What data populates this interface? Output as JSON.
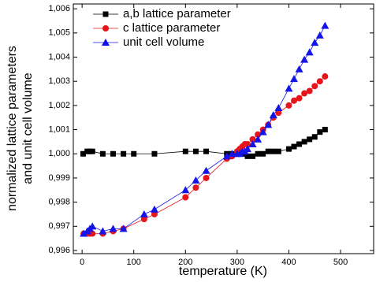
{
  "chart_data": {
    "type": "scatter-line",
    "xlabel": "temperature (K)",
    "ylabel": [
      "normalized lattice parameters",
      "and unit cell volume"
    ],
    "xlim": [
      -17,
      564
    ],
    "ylim": [
      0.99587,
      1.0062
    ],
    "xticks": [
      0,
      100,
      200,
      300,
      400,
      500
    ],
    "yticks": [
      {
        "value": 0.996,
        "label": "0,996"
      },
      {
        "value": 0.997,
        "label": "0,997"
      },
      {
        "value": 0.998,
        "label": "0,998"
      },
      {
        "value": 0.999,
        "label": "0,999"
      },
      {
        "value": 1.0,
        "label": "1,000"
      },
      {
        "value": 1.001,
        "label": "1,001"
      },
      {
        "value": 1.002,
        "label": "1,002"
      },
      {
        "value": 1.003,
        "label": "1,003"
      },
      {
        "value": 1.004,
        "label": "1,004"
      },
      {
        "value": 1.005,
        "label": "1,005"
      },
      {
        "value": 1.006,
        "label": "1,006"
      }
    ],
    "legend": "upper-left",
    "series": [
      {
        "name": "a,b lattice parameter",
        "color": "#000000",
        "marker": "square",
        "x": [
          2,
          10,
          15,
          20,
          40,
          60,
          80,
          100,
          140,
          200,
          220,
          240,
          280,
          290,
          300,
          305,
          310,
          315,
          320,
          330,
          340,
          350,
          360,
          370,
          380,
          400,
          410,
          420,
          430,
          440,
          450,
          460,
          470
        ],
        "values": [
          1.0,
          1.0001,
          1.0001,
          1.0001,
          1.0,
          1.0,
          1.0,
          1.0,
          1.0,
          1.0001,
          1.0001,
          1.0001,
          1.0,
          1.0,
          1.0,
          1.0,
          1.0,
          1.0,
          0.9999,
          0.9999,
          1.0,
          1.0,
          1.0001,
          1.0001,
          1.0001,
          1.0002,
          1.0003,
          1.0004,
          1.0005,
          1.0006,
          1.0007,
          1.0009,
          1.001
        ]
      },
      {
        "name": "c lattice parameter",
        "color": "#e8141c",
        "marker": "circle",
        "x": [
          3,
          10,
          15,
          20,
          40,
          60,
          80,
          120,
          140,
          200,
          220,
          240,
          280,
          290,
          300,
          305,
          310,
          315,
          320,
          330,
          340,
          350,
          360,
          370,
          380,
          400,
          410,
          420,
          430,
          440,
          450,
          460,
          470
        ],
        "values": [
          0.9967,
          0.9967,
          0.9967,
          0.9967,
          0.9967,
          0.9968,
          0.9969,
          0.9973,
          0.9975,
          0.9982,
          0.9986,
          0.999,
          0.9998,
          0.9999,
          1.0001,
          1.0002,
          1.0003,
          1.0004,
          1.0004,
          1.0006,
          1.0008,
          1.001,
          1.0012,
          1.0015,
          1.0017,
          1.002,
          1.0022,
          1.0023,
          1.0025,
          1.0026,
          1.0028,
          1.003,
          1.0032
        ]
      },
      {
        "name": "unit cell volume",
        "color": "#1414e8",
        "marker": "triangle",
        "x": [
          3,
          10,
          15,
          20,
          40,
          60,
          80,
          120,
          140,
          200,
          220,
          240,
          280,
          290,
          300,
          305,
          310,
          315,
          320,
          330,
          340,
          350,
          360,
          370,
          380,
          400,
          410,
          420,
          430,
          440,
          450,
          460,
          470
        ],
        "values": [
          0.9967,
          0.9968,
          0.9969,
          0.997,
          0.9968,
          0.9969,
          0.9969,
          0.9975,
          0.9977,
          0.9985,
          0.9989,
          0.9993,
          0.9999,
          1.0,
          1.0,
          1.0,
          1.0001,
          1.0001,
          1.0002,
          1.0004,
          1.0006,
          1.0009,
          1.0012,
          1.0016,
          1.0019,
          1.0027,
          1.0031,
          1.0035,
          1.0039,
          1.0042,
          1.0046,
          1.0049,
          1.0053
        ]
      }
    ]
  }
}
